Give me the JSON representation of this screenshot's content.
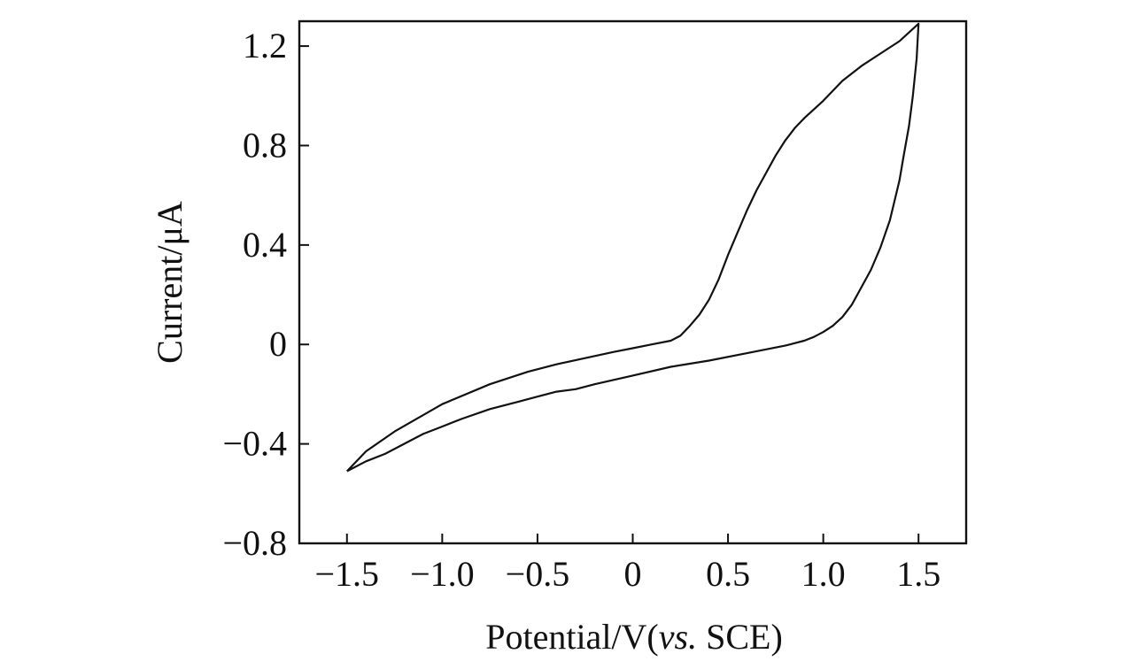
{
  "chart_data": {
    "type": "line",
    "xlabel_main": "Potential/V(",
    "xlabel_italic": "vs.",
    "xlabel_tail": " SCE)",
    "ylabel": "Current/μA",
    "xlim": [
      -1.75,
      1.75
    ],
    "ylim": [
      -0.8,
      1.3
    ],
    "x_ticks": [
      -1.5,
      -1.0,
      -0.5,
      0,
      0.5,
      1.0,
      1.5
    ],
    "x_tick_labels": [
      "−1.5",
      "−1.0",
      "−0.5",
      "0",
      "0.5",
      "1.0",
      "1.5"
    ],
    "y_ticks": [
      -0.8,
      -0.4,
      0,
      0.4,
      0.8,
      1.2
    ],
    "y_tick_labels": [
      "−0.8",
      "−0.4",
      "0",
      "0.4",
      "0.8",
      "1.2"
    ],
    "grid": false,
    "series": [
      {
        "color": "#111111",
        "x": [
          -1.5,
          -1.4,
          -1.25,
          -1.0,
          -0.75,
          -0.55,
          -0.4,
          -0.25,
          -0.1,
          0.0,
          0.1,
          0.2,
          0.25,
          0.3,
          0.35,
          0.4,
          0.45,
          0.5,
          0.55,
          0.6,
          0.65,
          0.7,
          0.75,
          0.8,
          0.85,
          0.9,
          1.0,
          1.1,
          1.2,
          1.3,
          1.4,
          1.5,
          1.49,
          1.47,
          1.45,
          1.42,
          1.4,
          1.35,
          1.3,
          1.25,
          1.2,
          1.15,
          1.1,
          1.05,
          1.0,
          0.95,
          0.9,
          0.85,
          0.8,
          0.6,
          0.4,
          0.2,
          0.0,
          -0.2,
          -0.3,
          -0.4,
          -0.5,
          -0.6,
          -0.75,
          -0.9,
          -1.0,
          -1.1,
          -1.2,
          -1.3,
          -1.4,
          -1.5
        ],
        "y": [
          -0.51,
          -0.43,
          -0.35,
          -0.24,
          -0.16,
          -0.11,
          -0.08,
          -0.055,
          -0.03,
          -0.015,
          0.0,
          0.015,
          0.035,
          0.075,
          0.12,
          0.18,
          0.26,
          0.36,
          0.45,
          0.54,
          0.62,
          0.69,
          0.76,
          0.82,
          0.87,
          0.91,
          0.98,
          1.06,
          1.12,
          1.17,
          1.22,
          1.29,
          1.15,
          1.0,
          0.88,
          0.75,
          0.66,
          0.5,
          0.39,
          0.3,
          0.23,
          0.16,
          0.11,
          0.075,
          0.05,
          0.03,
          0.015,
          0.005,
          -0.005,
          -0.035,
          -0.065,
          -0.09,
          -0.125,
          -0.16,
          -0.18,
          -0.19,
          -0.21,
          -0.23,
          -0.26,
          -0.3,
          -0.33,
          -0.36,
          -0.4,
          -0.44,
          -0.47,
          -0.51
        ]
      }
    ]
  }
}
